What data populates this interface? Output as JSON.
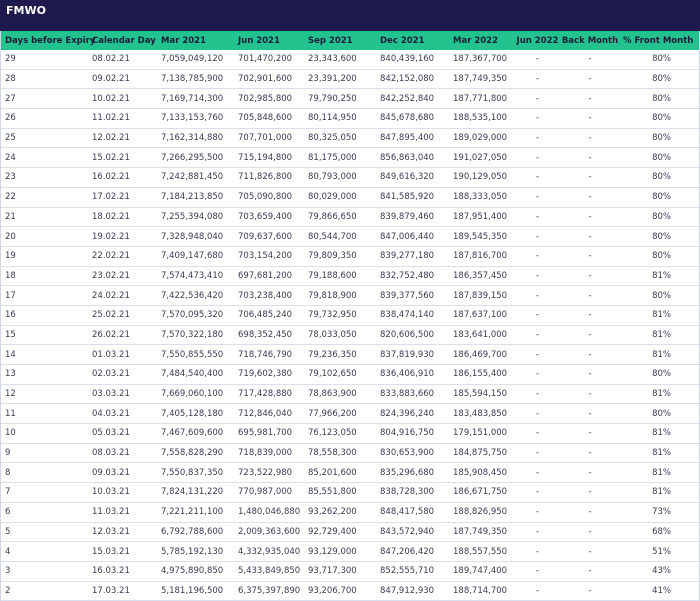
{
  "title": "FMWO",
  "columns": [
    "Days before Expiry",
    "Calendar Day",
    "Mar 2021",
    "Jun 2021",
    "Sep 2021",
    "Dec 2021",
    "Mar 2022",
    "Jun 2022",
    "Back Month",
    "% Front Month"
  ],
  "rows": [
    [
      "29",
      "08.02.21",
      "7,059,049,120",
      "701,470,200",
      "23,343,600",
      "840,439,160",
      "187,367,700",
      "-",
      "-",
      "80%"
    ],
    [
      "28",
      "09.02.21",
      "7,138,785,900",
      "702,901,600",
      "23,391,200",
      "842,152,080",
      "187,749,350",
      "-",
      "-",
      "80%"
    ],
    [
      "27",
      "10.02.21",
      "7,169,714,300",
      "702,985,800",
      "79,790,250",
      "842,252,840",
      "187,771,800",
      "-",
      "-",
      "80%"
    ],
    [
      "26",
      "11.02.21",
      "7,133,153,760",
      "705,848,600",
      "80,114,950",
      "845,678,680",
      "188,535,100",
      "-",
      "-",
      "80%"
    ],
    [
      "25",
      "12.02.21",
      "7,162,314,880",
      "707,701,000",
      "80,325,050",
      "847,895,400",
      "189,029,000",
      "-",
      "-",
      "80%"
    ],
    [
      "24",
      "15.02.21",
      "7,266,295,500",
      "715,194,800",
      "81,175,000",
      "856,863,040",
      "191,027,050",
      "-",
      "-",
      "80%"
    ],
    [
      "23",
      "16.02.21",
      "7,242,881,450",
      "711,826,800",
      "80,793,000",
      "849,616,320",
      "190,129,050",
      "-",
      "-",
      "80%"
    ],
    [
      "22",
      "17.02.21",
      "7,184,213,850",
      "705,090,800",
      "80,029,000",
      "841,585,920",
      "188,333,050",
      "-",
      "-",
      "80%"
    ],
    [
      "21",
      "18.02.21",
      "7,255,394,080",
      "703,659,400",
      "79,866,650",
      "839,879,460",
      "187,951,400",
      "-",
      "-",
      "80%"
    ],
    [
      "20",
      "19.02.21",
      "7,328,948,040",
      "709,637,600",
      "80,544,700",
      "847,006,440",
      "189,545,350",
      "-",
      "-",
      "80%"
    ],
    [
      "19",
      "22.02.21",
      "7,409,147,680",
      "703,154,200",
      "79,809,350",
      "839,277,180",
      "187,816,700",
      "-",
      "-",
      "80%"
    ],
    [
      "18",
      "23.02.21",
      "7,574,473,410",
      "697,681,200",
      "79,188,600",
      "832,752,480",
      "186,357,450",
      "-",
      "-",
      "81%"
    ],
    [
      "17",
      "24.02.21",
      "7,422,536,420",
      "703,238,400",
      "79,818,900",
      "839,377,560",
      "187,839,150",
      "-",
      "-",
      "80%"
    ],
    [
      "16",
      "25.02.21",
      "7,570,095,320",
      "706,485,240",
      "79,732,950",
      "838,474,140",
      "187,637,100",
      "-",
      "-",
      "81%"
    ],
    [
      "15",
      "26.02.21",
      "7,570,322,180",
      "698,352,450",
      "78,033,050",
      "820,606,500",
      "183,641,000",
      "-",
      "-",
      "81%"
    ],
    [
      "14",
      "01.03.21",
      "7,550,855,550",
      "718,746,790",
      "79,236,350",
      "837,819,930",
      "186,469,700",
      "-",
      "-",
      "81%"
    ],
    [
      "13",
      "02.03.21",
      "7,484,540,400",
      "719,602,380",
      "79,102,650",
      "836,406,910",
      "186,155,400",
      "-",
      "-",
      "80%"
    ],
    [
      "12",
      "03.03.21",
      "7,669,060,100",
      "717,428,880",
      "78,863,900",
      "833,883,660",
      "185,594,150",
      "-",
      "-",
      "81%"
    ],
    [
      "11",
      "04.03.21",
      "7,405,128,180",
      "712,846,040",
      "77,966,200",
      "824,396,240",
      "183,483,850",
      "-",
      "-",
      "80%"
    ],
    [
      "10",
      "05.03.21",
      "7,467,609,600",
      "695,981,700",
      "76,123,050",
      "804,916,750",
      "179,151,000",
      "-",
      "-",
      "81%"
    ],
    [
      "9",
      "08.03.21",
      "7,558,828,290",
      "718,839,000",
      "78,558,300",
      "830,653,900",
      "184,875,750",
      "-",
      "-",
      "81%"
    ],
    [
      "8",
      "09.03.21",
      "7,550,837,350",
      "723,522,980",
      "85,201,600",
      "835,296,680",
      "185,908,450",
      "-",
      "-",
      "81%"
    ],
    [
      "7",
      "10.03.21",
      "7,824,131,220",
      "770,987,000",
      "85,551,800",
      "838,728,300",
      "186,671,750",
      "-",
      "-",
      "81%"
    ],
    [
      "6",
      "11.03.21",
      "7,221,211,100",
      "1,480,046,880",
      "93,262,200",
      "848,417,580",
      "188,826,950",
      "-",
      "-",
      "73%"
    ],
    [
      "5",
      "12.03.21",
      "6,792,788,600",
      "2,009,363,600",
      "92,729,400",
      "843,572,940",
      "187,749,350",
      "-",
      "-",
      "68%"
    ],
    [
      "4",
      "15.03.21",
      "5,785,192,130",
      "4,332,935,040",
      "93,129,000",
      "847,206,420",
      "188,557,550",
      "-",
      "-",
      "51%"
    ],
    [
      "3",
      "16.03.21",
      "4,975,890,850",
      "5,433,849,850",
      "93,717,300",
      "852,555,710",
      "189,747,400",
      "-",
      "-",
      "43%"
    ],
    [
      "2",
      "17.03.21",
      "5,181,196,500",
      "6,375,397,890",
      "93,206,700",
      "847,912,930",
      "188,714,700",
      "-",
      "-",
      "41%"
    ]
  ],
  "colors": {
    "title_bg": "#1f1a4e",
    "header_bg": "#22c38e"
  }
}
